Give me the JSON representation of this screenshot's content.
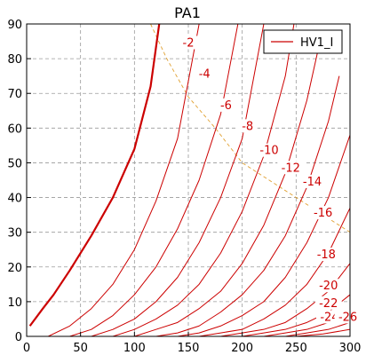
{
  "chart_data": {
    "type": "line",
    "title": "PA1",
    "xlabel": "",
    "ylabel": "",
    "xlim": [
      0,
      300
    ],
    "ylim": [
      0,
      90
    ],
    "xticks": [
      "0",
      "50",
      "100",
      "150",
      "200",
      "250",
      "300"
    ],
    "yticks": [
      "0",
      "10",
      "20",
      "30",
      "40",
      "50",
      "60",
      "70",
      "80",
      "90"
    ],
    "grid": true,
    "legend": {
      "placement": "top-right",
      "entries": [
        "HV1_I"
      ]
    },
    "colors": {
      "curve": "#cc0000",
      "load_line": "#e0a030",
      "grid": "#9a9a9a"
    },
    "series": [
      {
        "grid_voltage": "0",
        "label": "",
        "points": [
          [
            3,
            3
          ],
          [
            15,
            8
          ],
          [
            25,
            12
          ],
          [
            40,
            19
          ],
          [
            60,
            29
          ],
          [
            80,
            40
          ],
          [
            100,
            54
          ],
          [
            115,
            72
          ],
          [
            123,
            90
          ]
        ]
      },
      {
        "grid_voltage": "-2",
        "label": "-2",
        "points": [
          [
            20,
            0
          ],
          [
            40,
            3
          ],
          [
            60,
            8
          ],
          [
            80,
            15
          ],
          [
            100,
            25
          ],
          [
            120,
            39
          ],
          [
            140,
            57
          ],
          [
            160,
            90
          ]
        ]
      },
      {
        "grid_voltage": "-4",
        "label": "-4",
        "points": [
          [
            40,
            0
          ],
          [
            60,
            2
          ],
          [
            80,
            6
          ],
          [
            100,
            12
          ],
          [
            120,
            20
          ],
          [
            140,
            31
          ],
          [
            160,
            45
          ],
          [
            180,
            64
          ],
          [
            196,
            90
          ]
        ]
      },
      {
        "grid_voltage": "-6",
        "label": "-6",
        "points": [
          [
            60,
            0
          ],
          [
            80,
            2
          ],
          [
            100,
            5
          ],
          [
            120,
            10
          ],
          [
            140,
            17
          ],
          [
            160,
            27
          ],
          [
            180,
            40
          ],
          [
            200,
            57
          ],
          [
            220,
            90
          ]
        ]
      },
      {
        "grid_voltage": "-8",
        "label": "-8",
        "points": [
          [
            80,
            0
          ],
          [
            100,
            2
          ],
          [
            120,
            5
          ],
          [
            140,
            9
          ],
          [
            160,
            15
          ],
          [
            180,
            24
          ],
          [
            200,
            36
          ],
          [
            220,
            52
          ],
          [
            240,
            75
          ],
          [
            248,
            90
          ]
        ]
      },
      {
        "grid_voltage": "-10",
        "label": "-10",
        "points": [
          [
            100,
            0
          ],
          [
            120,
            2
          ],
          [
            140,
            4
          ],
          [
            160,
            8
          ],
          [
            180,
            13
          ],
          [
            200,
            21
          ],
          [
            220,
            32
          ],
          [
            240,
            47
          ],
          [
            260,
            68
          ],
          [
            270,
            82
          ]
        ]
      },
      {
        "grid_voltage": "-12",
        "label": "-12",
        "points": [
          [
            120,
            0
          ],
          [
            140,
            1
          ],
          [
            160,
            3
          ],
          [
            180,
            7
          ],
          [
            200,
            12
          ],
          [
            220,
            19
          ],
          [
            240,
            29
          ],
          [
            260,
            43
          ],
          [
            280,
            62
          ],
          [
            290,
            75
          ]
        ]
      },
      {
        "grid_voltage": "-14",
        "label": "-14",
        "points": [
          [
            140,
            0
          ],
          [
            160,
            1
          ],
          [
            180,
            3
          ],
          [
            200,
            6
          ],
          [
            220,
            10
          ],
          [
            240,
            17
          ],
          [
            260,
            27
          ],
          [
            280,
            40
          ],
          [
            300,
            58
          ]
        ]
      },
      {
        "grid_voltage": "-16",
        "label": "-16",
        "points": [
          [
            160,
            0
          ],
          [
            180,
            1
          ],
          [
            200,
            2
          ],
          [
            220,
            5
          ],
          [
            240,
            9
          ],
          [
            260,
            15
          ],
          [
            280,
            24
          ],
          [
            300,
            37
          ]
        ]
      },
      {
        "grid_voltage": "-18",
        "label": "-18",
        "points": [
          [
            180,
            0
          ],
          [
            200,
            1
          ],
          [
            220,
            2
          ],
          [
            240,
            4
          ],
          [
            260,
            8
          ],
          [
            280,
            13
          ],
          [
            300,
            21
          ]
        ]
      },
      {
        "grid_voltage": "-20",
        "label": "-20",
        "points": [
          [
            200,
            0
          ],
          [
            220,
            1
          ],
          [
            240,
            2
          ],
          [
            260,
            4
          ],
          [
            280,
            7
          ],
          [
            300,
            12
          ]
        ]
      },
      {
        "grid_voltage": "-22",
        "label": "-22",
        "points": [
          [
            220,
            0
          ],
          [
            240,
            1
          ],
          [
            260,
            2
          ],
          [
            280,
            4
          ],
          [
            300,
            7
          ]
        ]
      },
      {
        "grid_voltage": "-24",
        "label": "-24",
        "points": [
          [
            240,
            0
          ],
          [
            260,
            1
          ],
          [
            280,
            2
          ],
          [
            300,
            4
          ]
        ]
      },
      {
        "grid_voltage": "-26",
        "label": "-26",
        "points": [
          [
            250,
            0
          ],
          [
            275,
            0.7
          ],
          [
            300,
            2
          ]
        ]
      }
    ],
    "load_line": {
      "points": [
        [
          115,
          90
        ],
        [
          130,
          80
        ],
        [
          150,
          69
        ],
        [
          175,
          60
        ],
        [
          200,
          50
        ],
        [
          230,
          44
        ],
        [
          260,
          38
        ],
        [
          300,
          30
        ]
      ]
    },
    "annotations": [
      {
        "text": "-2",
        "x": 150,
        "y": 84
      },
      {
        "text": "-4",
        "x": 165,
        "y": 75
      },
      {
        "text": "-6",
        "x": 185,
        "y": 66
      },
      {
        "text": "-8",
        "x": 205,
        "y": 60
      },
      {
        "text": "-10",
        "x": 225,
        "y": 53
      },
      {
        "text": "-12",
        "x": 245,
        "y": 48
      },
      {
        "text": "-14",
        "x": 265,
        "y": 44
      },
      {
        "text": "-16",
        "x": 275,
        "y": 35
      },
      {
        "text": "-18",
        "x": 278,
        "y": 23
      },
      {
        "text": "-20",
        "x": 280,
        "y": 14
      },
      {
        "text": "-22",
        "x": 280,
        "y": 9
      },
      {
        "text": "-24",
        "x": 281,
        "y": 5
      },
      {
        "text": "-26",
        "x": 298,
        "y": 5
      }
    ]
  }
}
